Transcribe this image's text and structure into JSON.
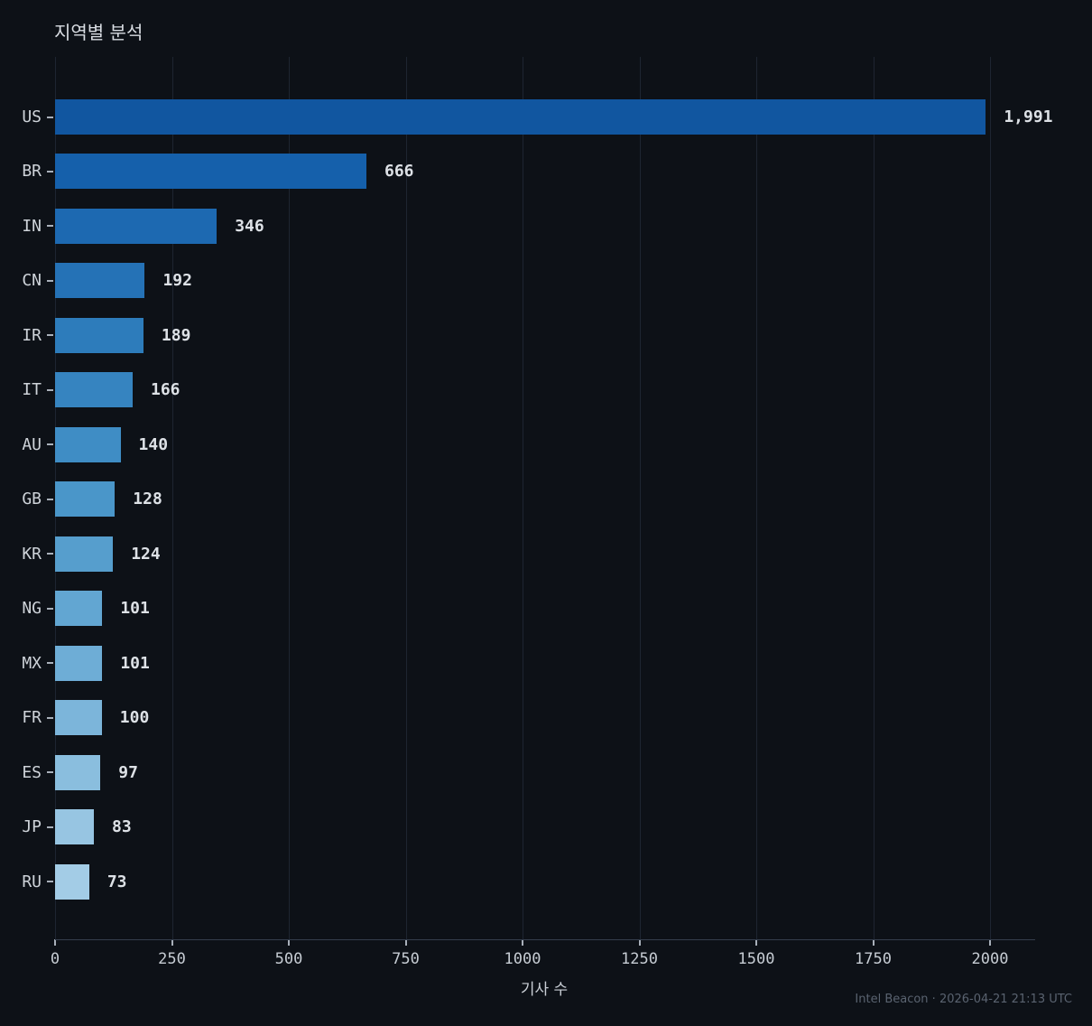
{
  "title": "지역별 분석",
  "xlabel": "기사 수",
  "footer": "Intel Beacon · 2026-04-21 21:13 UTC",
  "colors": {
    "background": "#0d1117",
    "gridline": "#1e2531",
    "axis_line": "#343e4d",
    "tick_mark": "#a9b0ba",
    "title_text": "#d9dde3",
    "category_text": "#ced3d9",
    "value_text": "#dde1e6",
    "tick_label_text": "#c6ccd3",
    "footer_text": "#5a6370"
  },
  "chart_data": {
    "type": "bar",
    "orientation": "horizontal",
    "title": "지역별 분석",
    "xlabel": "기사 수",
    "ylabel": "",
    "categories": [
      "US",
      "BR",
      "IN",
      "CN",
      "IR",
      "IT",
      "AU",
      "GB",
      "KR",
      "NG",
      "MX",
      "FR",
      "ES",
      "JP",
      "RU"
    ],
    "values": [
      1991,
      666,
      346,
      192,
      189,
      166,
      140,
      128,
      124,
      101,
      101,
      100,
      97,
      83,
      73
    ],
    "value_labels": [
      "1,991",
      "666",
      "346",
      "192",
      "189",
      "166",
      "140",
      "128",
      "124",
      "101",
      "101",
      "100",
      "97",
      "83",
      "73"
    ],
    "bar_colors": [
      "#1156a0",
      "#1560ab",
      "#1d69b1",
      "#2572b6",
      "#2d7cbb",
      "#3684c0",
      "#3f8dc5",
      "#4a96c9",
      "#569ecd",
      "#62a6d2",
      "#6eadd6",
      "#7cb5da",
      "#8abede",
      "#97c5e2",
      "#a3cce6"
    ],
    "xlim": [
      0,
      2000
    ],
    "xticks": [
      0,
      250,
      500,
      750,
      1000,
      1250,
      1500,
      1750,
      2000
    ],
    "grid": "vertical",
    "legend": "none"
  }
}
